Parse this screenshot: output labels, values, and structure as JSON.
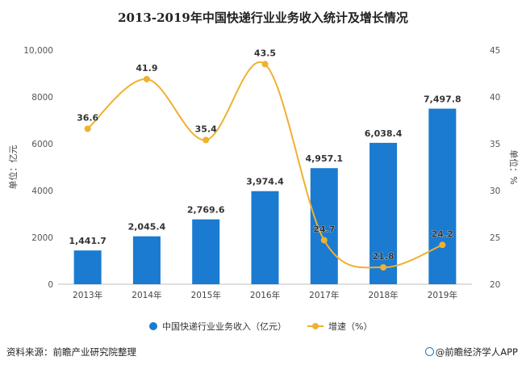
{
  "chart_data": {
    "type": "bar",
    "title": "2013-2019年中国快递行业业务收入统计及增长情况",
    "categories": [
      "2013年",
      "2014年",
      "2015年",
      "2016年",
      "2017年",
      "2018年",
      "2019年"
    ],
    "series": [
      {
        "name": "中国快递行业业务收入（亿元）",
        "type": "bar",
        "axis": "left",
        "color": "#1a7bd0",
        "values": [
          1441.7,
          2045.4,
          2769.6,
          3974.4,
          4957.1,
          6038.4,
          7497.8
        ],
        "labels": [
          "1,441.7",
          "2,045.4",
          "2,769.6",
          "3,974.4",
          "4,957.1",
          "6,038.4",
          "7,497.8"
        ]
      },
      {
        "name": "增速（%）",
        "type": "line",
        "axis": "right",
        "color": "#f0b030",
        "values": [
          36.6,
          41.9,
          35.4,
          43.5,
          24.7,
          21.8,
          24.2
        ],
        "labels": [
          "36.6",
          "41.9",
          "35.4",
          "43.5",
          "24.7",
          "21.8",
          "24.2"
        ]
      }
    ],
    "y_left": {
      "label": "单位：亿元",
      "range": [
        0,
        10000
      ],
      "ticks": [
        0,
        2000,
        4000,
        6000,
        8000,
        10000
      ],
      "tick_labels": [
        "0",
        "2000",
        "4000",
        "6000",
        "8000",
        "10,000"
      ]
    },
    "y_right": {
      "label": "单位：%",
      "range": [
        20,
        45
      ],
      "ticks": [
        20,
        25,
        30,
        35,
        40,
        45
      ],
      "tick_labels": [
        "20",
        "25",
        "30",
        "35",
        "40",
        "45"
      ]
    },
    "legend_position": "bottom",
    "grid": false
  },
  "footer": {
    "source": "资料来源：前瞻产业研究院整理",
    "brand": "@前瞻经济学人APP"
  }
}
